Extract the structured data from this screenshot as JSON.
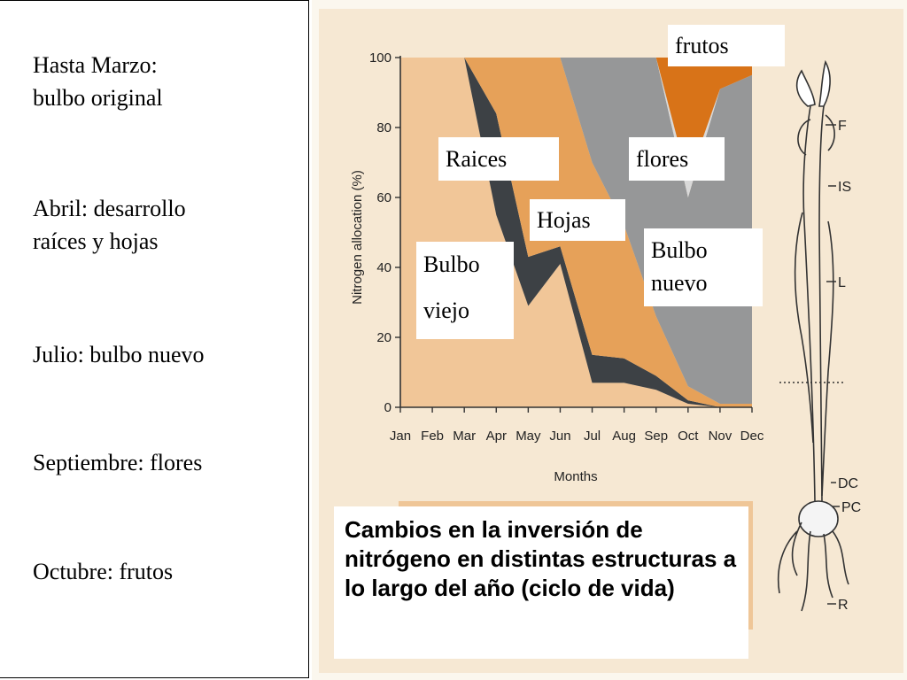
{
  "timeline": [
    {
      "text": "Hasta Marzo:\nbulbo original"
    },
    {
      "text": "Abril: desarrollo\nraíces y hojas"
    },
    {
      "text": "Julio: bulbo nuevo"
    },
    {
      "text": "Septiembre: flores"
    },
    {
      "text": "Octubre: frutos"
    }
  ],
  "labels": {
    "frutos": "frutos",
    "raices": "Raices",
    "flores": "flores",
    "hojas": "Hojas",
    "bulbo_viejo": "Bulbo\nviejo",
    "bulbo_nuevo": "Bulbo\nnuevo"
  },
  "caption": "Cambios en la inversión de nitrógeno en distintas estructuras a lo largo del año (ciclo de vida)",
  "plant_labels": [
    "F",
    "IS",
    "L",
    "DC",
    "PC",
    "R"
  ],
  "chart_data": {
    "type": "area",
    "stacked": true,
    "xlabel": "Months",
    "ylabel": "Nitrogen allocation (%)",
    "ylim": [
      0,
      100
    ],
    "yticks": [
      0,
      20,
      40,
      60,
      80,
      100
    ],
    "categories": [
      "Jan",
      "Feb",
      "Mar",
      "Apr",
      "May",
      "Jun",
      "Jul",
      "Aug",
      "Sep",
      "Oct",
      "Nov",
      "Dec"
    ],
    "series": [
      {
        "name": "Bulbo viejo",
        "color": "#f1c698",
        "values": [
          100,
          100,
          100,
          55,
          29,
          41,
          7,
          7,
          5,
          1,
          0,
          0
        ]
      },
      {
        "name": "Raices",
        "color": "#3d4145",
        "values": [
          0,
          0,
          0,
          29,
          14,
          5,
          8,
          7,
          4,
          1,
          0,
          0
        ]
      },
      {
        "name": "Hojas",
        "color": "#e6a159",
        "values": [
          0,
          0,
          0,
          16,
          57,
          54,
          55,
          38,
          17,
          4,
          1,
          1
        ]
      },
      {
        "name": "Bulbo nuevo",
        "color": "#969798",
        "values": [
          0,
          0,
          0,
          0,
          0,
          0,
          30,
          48,
          74,
          54,
          90,
          94
        ]
      },
      {
        "name": "flores",
        "color": "#d9d9d9",
        "values": [
          0,
          0,
          0,
          0,
          0,
          0,
          0,
          0,
          0,
          5,
          0,
          0
        ]
      },
      {
        "name": "frutos",
        "color": "#d87318",
        "values": [
          0,
          0,
          0,
          0,
          0,
          0,
          0,
          0,
          0,
          35,
          9,
          5
        ]
      }
    ],
    "grid": false,
    "legend": "inline labels"
  }
}
